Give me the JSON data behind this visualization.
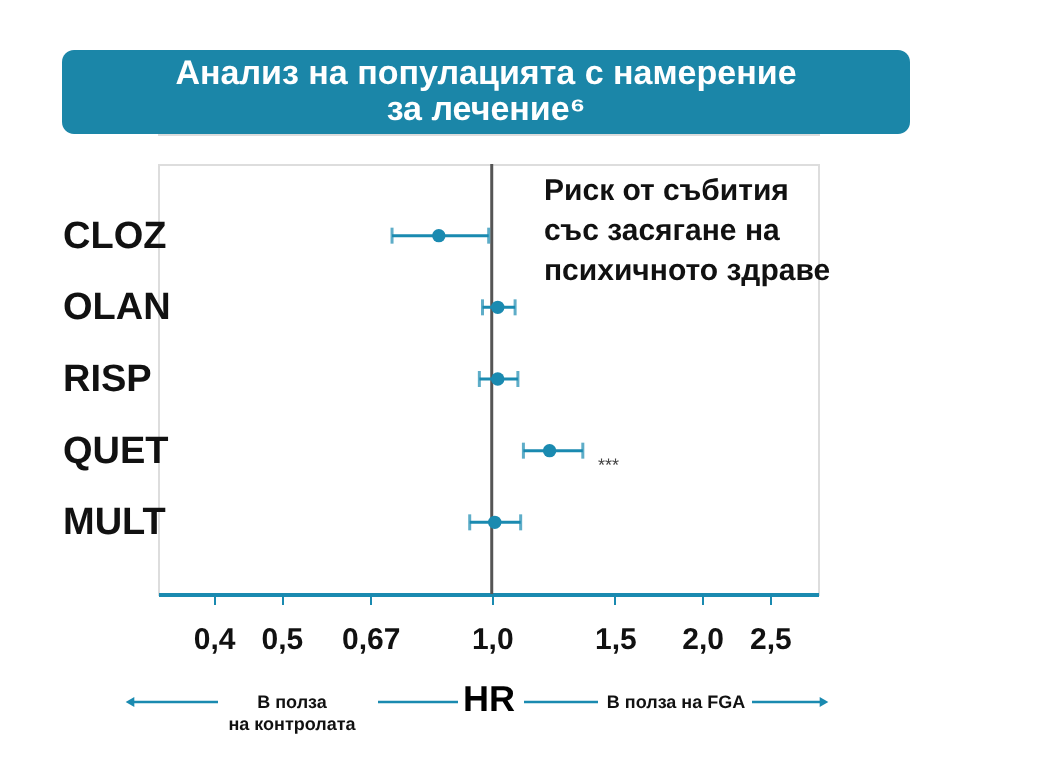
{
  "chart_data": {
    "type": "scatter",
    "title": "Анализ на популацията с намерение за лечение⁶",
    "categories": [
      "CLOZ",
      "OLAN",
      "RISP",
      "QUET",
      "MULT"
    ],
    "series": [
      {
        "color": "#1a8ab0",
        "values": [
          0.84,
          1.02,
          1.02,
          1.21,
          1.01
        ],
        "errors": [
          [
            0.72,
            0.99
          ],
          [
            0.97,
            1.08
          ],
          [
            0.96,
            1.09
          ],
          [
            1.11,
            1.35
          ],
          [
            0.93,
            1.1
          ]
        ]
      }
    ],
    "orientation": "horizontal",
    "log": "x",
    "marker": "circle",
    "grid": false,
    "xlim": [
      0.333,
      2.93
    ],
    "xticks": [
      {
        "value": 0.4,
        "label": "0,4"
      },
      {
        "value": 0.5,
        "label": "0,5"
      },
      {
        "value": 0.67,
        "label": "0,67"
      },
      {
        "value": 1.0,
        "label": "1,0"
      },
      {
        "value": 1.5,
        "label": "1,5"
      },
      {
        "value": 2.0,
        "label": "2,0"
      },
      {
        "value": 2.5,
        "label": "2,5"
      }
    ],
    "xlabel": "HR",
    "ref_lines": [
      {
        "axis": "x",
        "value": 1,
        "color": "#555555"
      }
    ],
    "annotations": [
      "Риск от събития със засягане на психичното здраве",
      "***",
      "В полза на контролата",
      "В полза на FGA"
    ]
  }
}
